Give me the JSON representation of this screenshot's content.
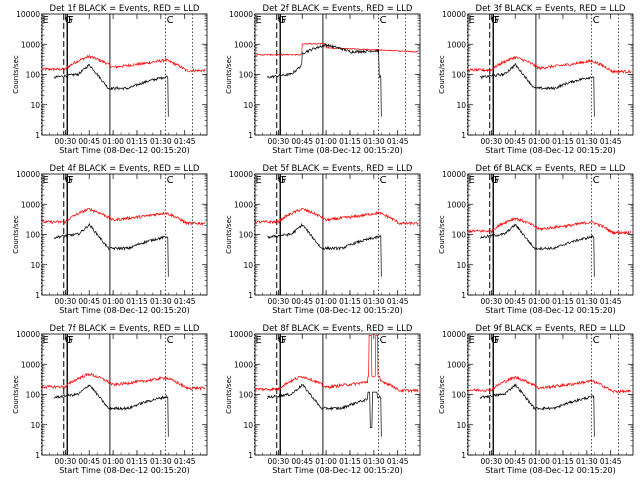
{
  "panels": [
    {
      "title": "Det 1f BLACK = Events, RED = LLD",
      "profile": "normal",
      "red_level": 150
    },
    {
      "title": "Det 2f BLACK = Events, RED = LLD",
      "profile": "det2",
      "red_level": 450
    },
    {
      "title": "Det 3f BLACK = Events, RED = LLD",
      "profile": "normal",
      "red_level": 140
    },
    {
      "title": "Det 4f BLACK = Events, RED = LLD",
      "profile": "normal",
      "red_level": 260
    },
    {
      "title": "Det 5f BLACK = Events, RED = LLD",
      "profile": "normal",
      "red_level": 260
    },
    {
      "title": "Det 6f BLACK = Events, RED = LLD",
      "profile": "normal",
      "red_level": 130
    },
    {
      "title": "Det 7f BLACK = Events, RED = LLD",
      "profile": "normal",
      "red_level": 180
    },
    {
      "title": "Det 8f BLACK = Events, RED = LLD",
      "profile": "det8",
      "red_level": 150
    },
    {
      "title": "Det 9f BLACK = Events, RED = LLD",
      "profile": "normal",
      "red_level": 140
    }
  ],
  "chart_data": {
    "type": "line",
    "ylabel": "Counts/sec",
    "xlabel": "Start Time (08-Dec-12 00:15:20)",
    "y_scale": "log",
    "ylim": [
      1,
      10000
    ],
    "y_ticks": [
      "1",
      "10",
      "100",
      "1000",
      "10000"
    ],
    "x_range_minutes": [
      15.33,
      119
    ],
    "x_ticks": [
      "00:30",
      "00:45",
      "01:00",
      "01:15",
      "01:30",
      "01:45"
    ],
    "series": [
      {
        "name": "BLACK = Events",
        "color": "#000000",
        "x": [
          "00:22",
          "00:30",
          "00:38",
          "00:45",
          "00:47",
          "00:52",
          "00:57",
          "01:05",
          "01:15",
          "01:25",
          "01:33",
          "01:35"
        ],
        "values": [
          null,
          90,
          110,
          210,
          150,
          60,
          35,
          35,
          45,
          60,
          80,
          5
        ]
      },
      {
        "name": "RED = LLD",
        "color": "#ff0000",
        "x": [
          "00:15",
          "00:30",
          "00:40",
          "00:45",
          "00:50",
          "01:00",
          "01:15",
          "01:25",
          "01:33",
          "01:42"
        ],
        "values": [
          150,
          170,
          260,
          400,
          330,
          200,
          160,
          220,
          300,
          140
        ]
      }
    ],
    "markers": [
      {
        "label": "E",
        "x": "00:15"
      },
      {
        "label": "G",
        "x": "00:29"
      },
      {
        "label": "F",
        "x": "00:31"
      },
      {
        "label": "C",
        "x": "01:33"
      }
    ]
  }
}
